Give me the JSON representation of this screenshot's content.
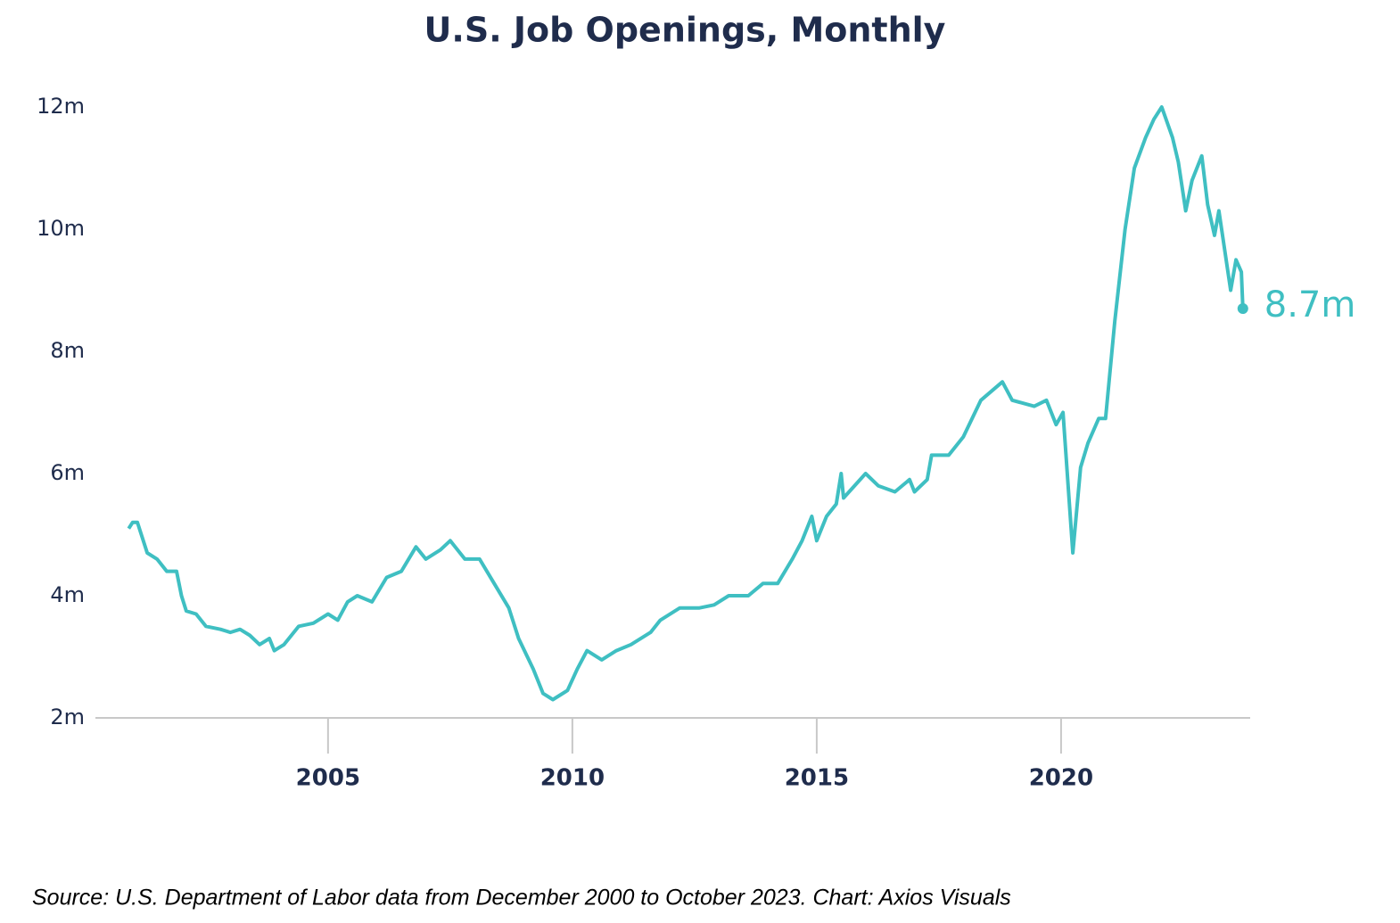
{
  "chart_data": {
    "type": "line",
    "title": "U.S. Job Openings, Monthly",
    "source": "Source: U.S. Department of Labor data from December 2000 to October 2023. Chart: Axios Visuals",
    "x": [
      2000.92,
      2001.0,
      2001.1,
      2001.3,
      2001.5,
      2001.7,
      2001.9,
      2002.0,
      2002.1,
      2002.3,
      2002.5,
      2002.8,
      2003.0,
      2003.2,
      2003.4,
      2003.6,
      2003.8,
      2003.9,
      2004.1,
      2004.4,
      2004.7,
      2005.0,
      2005.2,
      2005.4,
      2005.6,
      2005.9,
      2006.2,
      2006.5,
      2006.8,
      2007.0,
      2007.3,
      2007.5,
      2007.8,
      2008.1,
      2008.4,
      2008.7,
      2008.9,
      2009.2,
      2009.4,
      2009.6,
      2009.9,
      2010.1,
      2010.3,
      2010.6,
      2010.9,
      2011.2,
      2011.6,
      2011.8,
      2012.2,
      2012.6,
      2012.9,
      2013.2,
      2013.6,
      2013.9,
      2014.2,
      2014.5,
      2014.7,
      2014.9,
      2015.0,
      2015.2,
      2015.4,
      2015.5,
      2015.55,
      2016.0,
      2016.26,
      2016.6,
      2016.9,
      2017.0,
      2017.26,
      2017.35,
      2017.7,
      2018.0,
      2018.36,
      2018.8,
      2019.0,
      2019.45,
      2019.7,
      2019.9,
      2020.04,
      2020.24,
      2020.4,
      2020.55,
      2020.77,
      2020.91,
      2021.1,
      2021.31,
      2021.5,
      2021.73,
      2021.9,
      2022.06,
      2022.28,
      2022.4,
      2022.55,
      2022.68,
      2022.88,
      2023.0,
      2023.14,
      2023.23,
      2023.47,
      2023.58,
      2023.69,
      2023.72
    ],
    "series": [
      {
        "name": "Job openings",
        "color": "#3fbfc2",
        "values": [
          5.1,
          5.2,
          5.2,
          4.7,
          4.6,
          4.4,
          4.4,
          4.0,
          3.75,
          3.7,
          3.5,
          3.45,
          3.4,
          3.45,
          3.35,
          3.2,
          3.3,
          3.1,
          3.2,
          3.5,
          3.55,
          3.7,
          3.6,
          3.9,
          4.0,
          3.9,
          4.3,
          4.4,
          4.8,
          4.6,
          4.75,
          4.9,
          4.6,
          4.6,
          4.2,
          3.8,
          3.3,
          2.8,
          2.4,
          2.3,
          2.45,
          2.8,
          3.1,
          2.95,
          3.1,
          3.2,
          3.4,
          3.6,
          3.8,
          3.8,
          3.85,
          4.0,
          4.0,
          4.2,
          4.2,
          4.6,
          4.9,
          5.3,
          4.9,
          5.3,
          5.5,
          6.0,
          5.6,
          6.0,
          5.8,
          5.7,
          5.9,
          5.7,
          5.9,
          6.3,
          6.3,
          6.6,
          7.2,
          7.5,
          7.2,
          7.1,
          7.2,
          6.8,
          7.0,
          4.7,
          6.1,
          6.5,
          6.9,
          6.9,
          8.5,
          10.0,
          11.0,
          11.5,
          11.8,
          12.0,
          11.5,
          11.1,
          10.3,
          10.8,
          11.2,
          10.4,
          9.9,
          10.3,
          9.0,
          9.5,
          9.3,
          8.7
        ],
        "value_labels": [
          null,
          null,
          null,
          null,
          null,
          null,
          null,
          null,
          null,
          null,
          null,
          null,
          null,
          null,
          null,
          null,
          null,
          null,
          null,
          null,
          null,
          null,
          null,
          null,
          null,
          null,
          null,
          null,
          null,
          null,
          null,
          null,
          null,
          null,
          null,
          null,
          null,
          null,
          null,
          null,
          null,
          null,
          null,
          null,
          null,
          null,
          null,
          null,
          null,
          null,
          null,
          null,
          null,
          null,
          null,
          null,
          null,
          null,
          null,
          null,
          null,
          null,
          null,
          null,
          null,
          null,
          null,
          null,
          null,
          null,
          null,
          null,
          null,
          null,
          null,
          null,
          null,
          null,
          null,
          null,
          null,
          null,
          null,
          null,
          null,
          null,
          null,
          null,
          null,
          null,
          null,
          null,
          null,
          null,
          null,
          null,
          null,
          null,
          null,
          null,
          null,
          "8.7m"
        ]
      }
    ],
    "xlim": [
      2000.24,
      2023.87
    ],
    "xticks": [
      2005,
      2010,
      2015,
      2020
    ],
    "ylim": [
      2,
      12
    ],
    "yticks": [
      {
        "value": 2,
        "label": "2m"
      },
      {
        "value": 4,
        "label": "4m"
      },
      {
        "value": 6,
        "label": "6m"
      },
      {
        "value": 8,
        "label": "8m"
      },
      {
        "value": 10,
        "label": "10m"
      },
      {
        "value": 12,
        "label": "12m"
      }
    ],
    "grid": false
  }
}
